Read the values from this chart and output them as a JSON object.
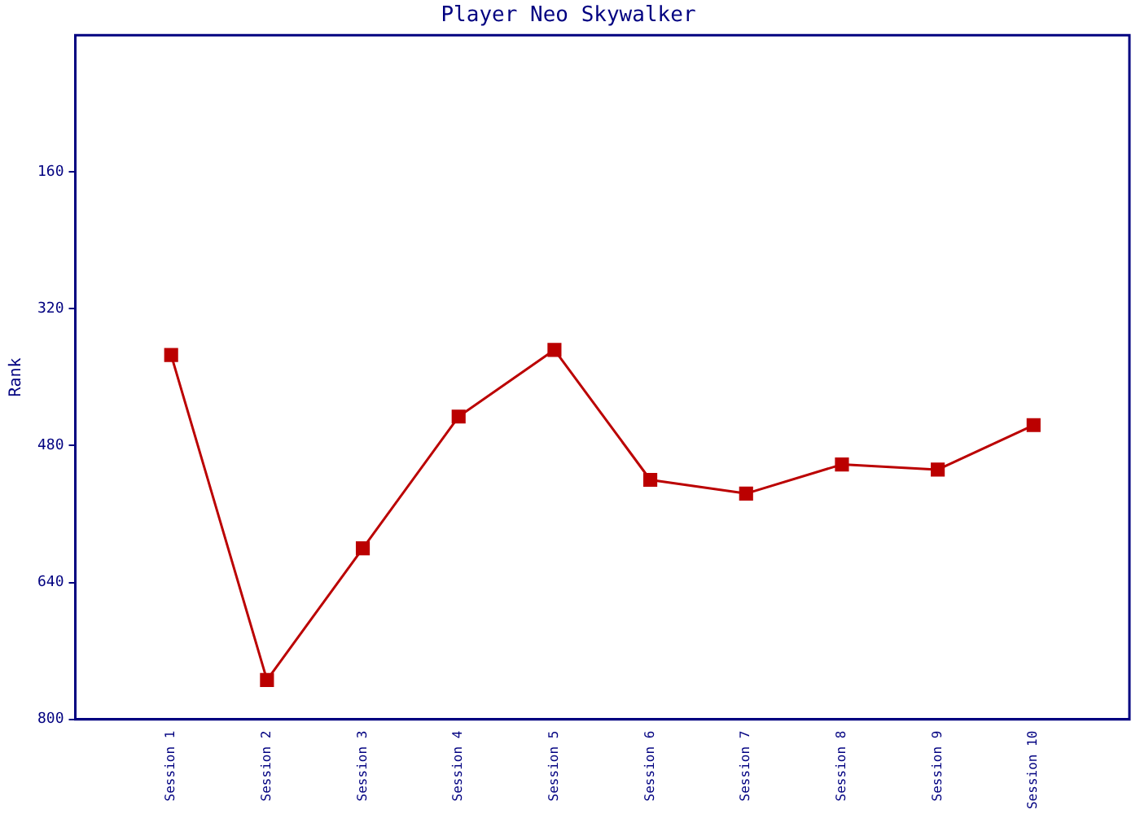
{
  "chart_data": {
    "type": "line",
    "title": "Player Neo Skywalker",
    "ylabel": "Rank",
    "categories": [
      "Session 1",
      "Session 2",
      "Session 3",
      "Session 4",
      "Session 5",
      "Session 6",
      "Session 7",
      "Session 8",
      "Session 9",
      "Session 10"
    ],
    "series": [
      {
        "color": "#bb0000",
        "values": [
          374,
          754,
          600,
          446,
          368,
          520,
          536,
          502,
          508,
          456
        ]
      }
    ],
    "ylim": [
      800,
      0
    ],
    "yticks": [
      160,
      320,
      480,
      640,
      800
    ],
    "marker": "square",
    "line_style": "solid",
    "grid": false,
    "legend": false
  }
}
